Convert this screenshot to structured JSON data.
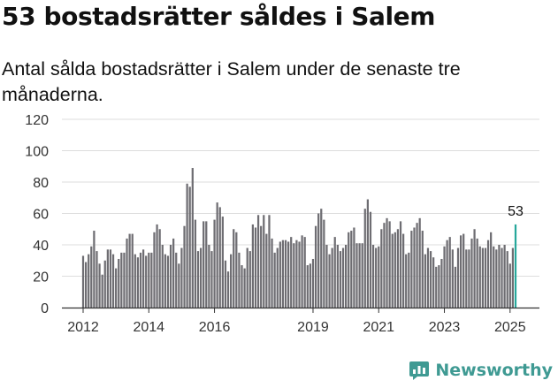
{
  "header": {
    "title": "53 bostadsrätter såldes i Salem",
    "subtitle": "Antal sålda bostadsrätter i Salem under de senaste tre månaderna."
  },
  "brand": {
    "name": "Newsworthy",
    "icon": "newsworthy-logo-icon",
    "color": "#3f9a93"
  },
  "colors": {
    "bar": "#6e6d72",
    "highlight": "#27a79b",
    "grid": "#dddddd",
    "axis": "#333333",
    "text": "#333333"
  },
  "chart_data": {
    "type": "bar",
    "title": "53 bostadsrätter såldes i Salem",
    "xlabel": "",
    "ylabel": "",
    "ylim": [
      0,
      120
    ],
    "yticks": [
      "0",
      "20",
      "40",
      "60",
      "80",
      "100",
      "120"
    ],
    "xticks": [
      "2012",
      "2014",
      "2016",
      "2019",
      "2021",
      "2023",
      "2025"
    ],
    "xtick_index": [
      0,
      24,
      48,
      84,
      108,
      132,
      156
    ],
    "highlight_label": "53",
    "grid": true,
    "series": [
      {
        "name": "Antal sålda bostadsrätter",
        "values": [
          33,
          29,
          34,
          39,
          49,
          36,
          28,
          21,
          30,
          37,
          37,
          34,
          25,
          31,
          35,
          35,
          44,
          47,
          47,
          34,
          32,
          35,
          37,
          33,
          35,
          35,
          48,
          53,
          50,
          40,
          34,
          33,
          40,
          44,
          35,
          28,
          38,
          52,
          79,
          77,
          89,
          56,
          36,
          38,
          55,
          55,
          40,
          36,
          56,
          67,
          64,
          58,
          30,
          23,
          34,
          50,
          48,
          35,
          27,
          25,
          38,
          36,
          53,
          51,
          59,
          52,
          59,
          47,
          59,
          44,
          35,
          38,
          42,
          43,
          43,
          42,
          45,
          41,
          43,
          42,
          46,
          45,
          27,
          28,
          31,
          52,
          60,
          63,
          56,
          40,
          34,
          38,
          45,
          40,
          36,
          38,
          40,
          48,
          49,
          51,
          41,
          41,
          41,
          63,
          69,
          61,
          40,
          38,
          39,
          50,
          54,
          57,
          55,
          47,
          48,
          50,
          55,
          47,
          34,
          35,
          49,
          51,
          54,
          57,
          49,
          34,
          38,
          36,
          32,
          26,
          27,
          31,
          39,
          43,
          45,
          37,
          26,
          38,
          46,
          47,
          37,
          37,
          44,
          50,
          44,
          39,
          38,
          38,
          43,
          48,
          39,
          37,
          40,
          38,
          40,
          36,
          28,
          38,
          53
        ]
      }
    ]
  }
}
